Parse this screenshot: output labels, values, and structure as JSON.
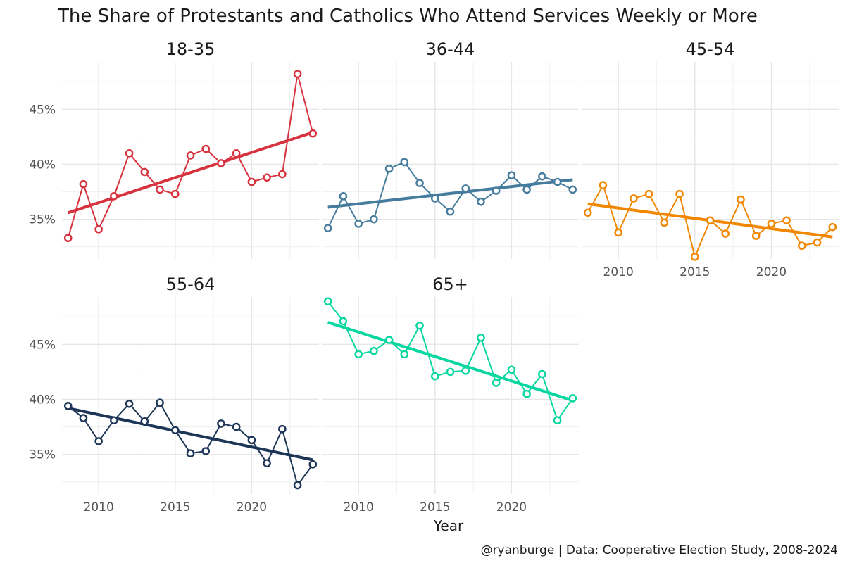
{
  "title": "The Share of Protestants and Catholics Who Attend Services Weekly or More",
  "xlabel": "Year",
  "caption": "@ryanburge | Data: Cooperative Election Study, 2008-2024",
  "chart_data": {
    "type": "line",
    "facets": [
      "18-35",
      "36-44",
      "45-54",
      "55-64",
      "65+"
    ],
    "x": [
      2008,
      2009,
      2010,
      2011,
      2012,
      2013,
      2014,
      2015,
      2016,
      2017,
      2018,
      2019,
      2020,
      2021,
      2022,
      2023,
      2024
    ],
    "x_ticks": [
      2010,
      2015,
      2020
    ],
    "y_ticks": [
      35,
      40,
      45
    ],
    "y_tick_labels": [
      "35%",
      "40%",
      "45%"
    ],
    "xlim": [
      2007.6,
      2024.4
    ],
    "ylim": [
      31.4,
      49.3
    ],
    "grid": true,
    "series": [
      {
        "name": "18-35",
        "color": "#D7333F",
        "values": [
          33.3,
          38.2,
          34.1,
          37.1,
          41.0,
          39.3,
          37.7,
          37.3,
          40.8,
          41.4,
          40.1,
          41.0,
          38.4,
          38.8,
          39.1,
          48.2,
          42.8
        ],
        "trend": [
          35.6,
          42.9
        ]
      },
      {
        "name": "36-44",
        "color": "#457B9D",
        "values": [
          34.2,
          37.1,
          34.6,
          35.0,
          39.6,
          40.2,
          38.3,
          36.9,
          35.7,
          37.8,
          36.6,
          37.6,
          39.0,
          37.7,
          38.9,
          38.4,
          37.7
        ],
        "trend": [
          36.1,
          38.6
        ]
      },
      {
        "name": "45-54",
        "color": "#F18701",
        "values": [
          35.6,
          38.1,
          33.8,
          36.9,
          37.3,
          34.7,
          37.3,
          31.6,
          34.9,
          33.7,
          36.8,
          33.5,
          34.6,
          34.9,
          32.6,
          32.9,
          34.3
        ],
        "trend": [
          36.4,
          33.4
        ]
      },
      {
        "name": "55-64",
        "color": "#1D3557",
        "values": [
          39.4,
          38.3,
          36.2,
          38.1,
          39.6,
          38.0,
          39.7,
          37.2,
          35.1,
          35.3,
          37.8,
          37.5,
          36.3,
          34.2,
          37.3,
          32.2,
          34.1
        ],
        "trend": [
          39.2,
          34.5
        ]
      },
      {
        "name": "65+",
        "color": "#06D6A0",
        "values": [
          48.9,
          47.1,
          44.1,
          44.4,
          45.4,
          44.1,
          46.7,
          42.1,
          42.5,
          42.6,
          45.6,
          41.5,
          42.7,
          40.5,
          42.3,
          38.1,
          40.1
        ],
        "trend": [
          47.0,
          39.9
        ]
      }
    ]
  }
}
